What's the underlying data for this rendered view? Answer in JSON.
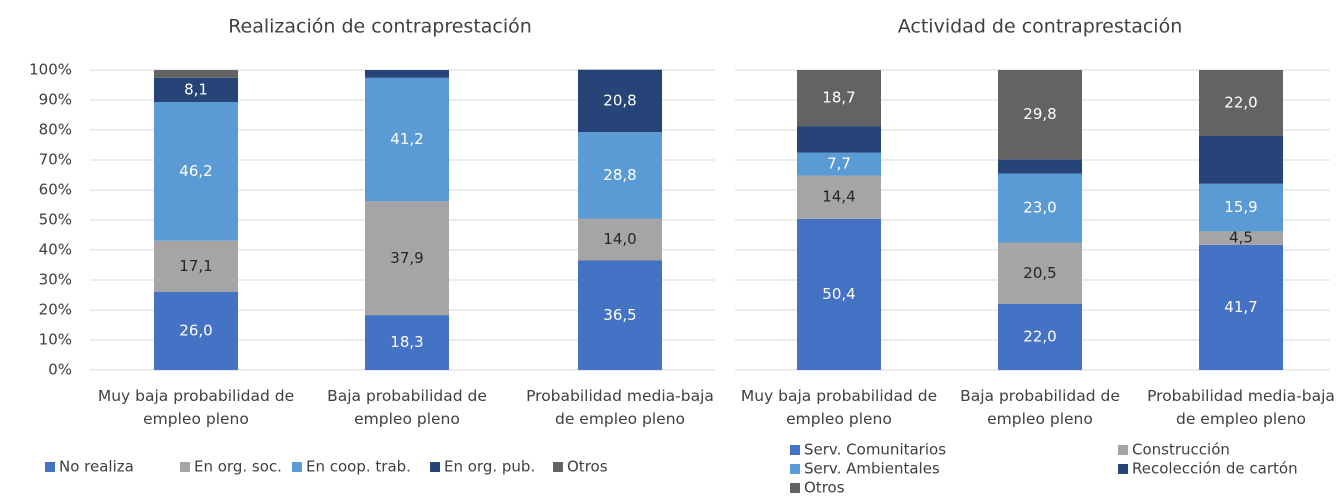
{
  "chart_data": [
    {
      "type": "bar",
      "stacked": true,
      "title": "Realización de contraprestación",
      "categories": [
        "Muy baja probabilidad de empleo pleno",
        "Baja probabilidad de empleo pleno",
        "Probabilidad media-baja de empleo pleno"
      ],
      "series": [
        {
          "name": "No realiza",
          "color": "#4472c4",
          "values": [
            26.0,
            18.3,
            36.5
          ],
          "value_labels": [
            "26,0",
            "18,3",
            "36,5"
          ]
        },
        {
          "name": "En org. soc.",
          "color": "#a5a5a5",
          "values": [
            17.1,
            37.9,
            14.0
          ],
          "value_labels": [
            "17,1",
            "37,9",
            "14,0"
          ]
        },
        {
          "name": "En coop. trab.",
          "color": "#5b9bd5",
          "values": [
            46.2,
            41.2,
            28.8
          ],
          "value_labels": [
            "46,2",
            "41,2",
            "28,8"
          ]
        },
        {
          "name": "En org. pub.",
          "color": "#264478",
          "values": [
            8.1,
            2.6,
            20.8
          ],
          "value_labels": [
            "8,1",
            null,
            "20,8"
          ]
        },
        {
          "name": "Otros",
          "color": "#636363",
          "values": [
            2.6,
            null,
            null
          ],
          "value_labels": [
            null,
            null,
            null
          ]
        }
      ],
      "ylim": [
        0,
        100
      ],
      "yticks": [
        {
          "value": 0,
          "label": "0%"
        },
        {
          "value": 10,
          "label": "10%"
        },
        {
          "value": 20,
          "label": "20%"
        },
        {
          "value": 30,
          "label": "30%"
        },
        {
          "value": 40,
          "label": "40%"
        },
        {
          "value": 50,
          "label": "50%"
        },
        {
          "value": 60,
          "label": "60%"
        },
        {
          "value": 70,
          "label": "70%"
        },
        {
          "value": 80,
          "label": "80%"
        },
        {
          "value": 90,
          "label": "90%"
        },
        {
          "value": 100,
          "label": "100%"
        }
      ],
      "tick_labels": true,
      "grid": true,
      "legend": "bottom"
    },
    {
      "type": "bar",
      "stacked": true,
      "title": "Actividad de contraprestación",
      "categories": [
        "Muy baja probabilidad de empleo pleno",
        "Baja probabilidad de empleo pleno",
        "Probabilidad media-baja de empleo pleno"
      ],
      "series": [
        {
          "name": "Serv. Comunitarios",
          "color": "#4472c4",
          "values": [
            50.4,
            22.0,
            41.7
          ],
          "value_labels": [
            "50,4",
            "22,0",
            "41,7"
          ]
        },
        {
          "name": "Construcción",
          "color": "#a5a5a5",
          "values": [
            14.4,
            20.5,
            4.5
          ],
          "value_labels": [
            "14,4",
            "20,5",
            "4,5"
          ]
        },
        {
          "name": "Serv. Ambientales",
          "color": "#5b9bd5",
          "values": [
            7.7,
            23.0,
            15.9
          ],
          "value_labels": [
            "7,7",
            "23,0",
            "15,9"
          ]
        },
        {
          "name": "Recolección de cartón",
          "color": "#264478",
          "values": [
            8.8,
            4.7,
            15.9
          ],
          "value_labels": [
            null,
            null,
            null
          ]
        },
        {
          "name": "Otros",
          "color": "#636363",
          "values": [
            18.7,
            29.8,
            22.0
          ],
          "value_labels": [
            "18,7",
            "29,8",
            "22,0"
          ]
        }
      ],
      "ylim": [
        0,
        100
      ],
      "yticks": [
        0,
        10,
        20,
        30,
        40,
        50,
        60,
        70,
        80,
        90,
        100
      ],
      "tick_labels": false,
      "grid": true,
      "legend": "bottom"
    }
  ]
}
